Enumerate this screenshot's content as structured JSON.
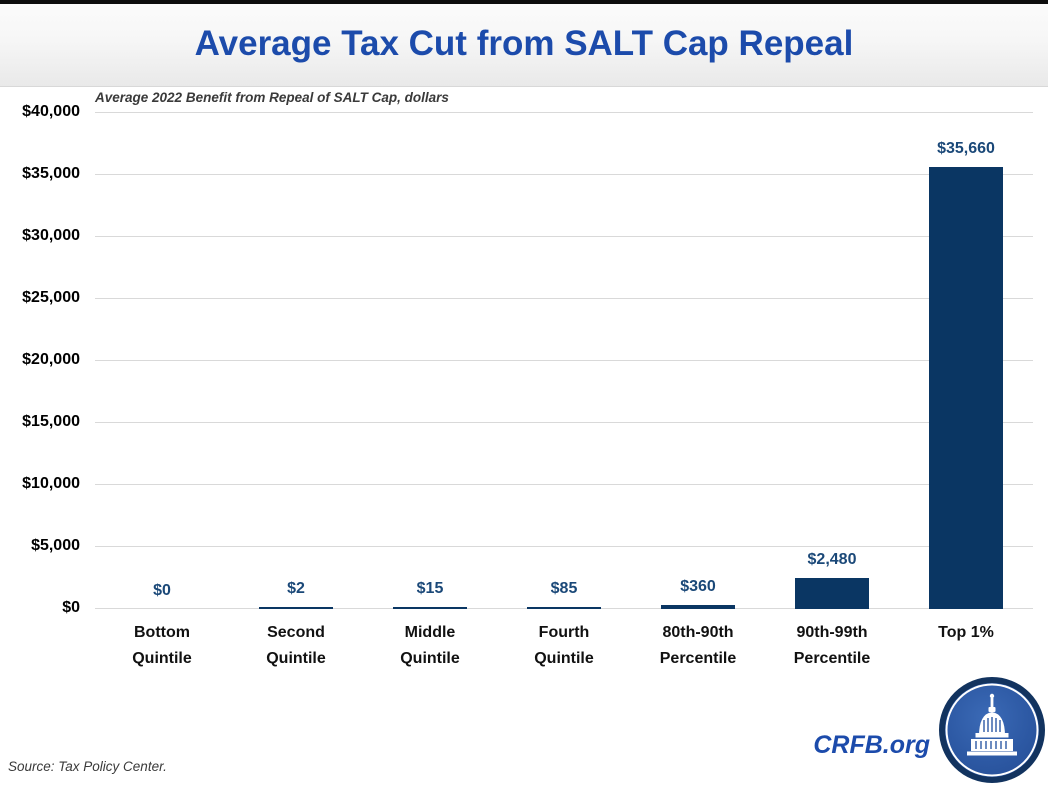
{
  "page": {
    "title": "Average Tax Cut from SALT Cap Repeal",
    "subtitle": "Average 2022 Benefit from Repeal of SALT Cap, dollars",
    "source_note": "Source: Tax Policy Center.",
    "brand": "CRFB.org",
    "logo_icon": "capitol-icon"
  },
  "chart_data": {
    "type": "bar",
    "title": "Average Tax Cut from SALT Cap Repeal",
    "subtitle": "Average 2022 Benefit from Repeal of SALT Cap, dollars",
    "categories": [
      [
        "Bottom",
        "Quintile"
      ],
      [
        "Second",
        "Quintile"
      ],
      [
        "Middle",
        "Quintile"
      ],
      [
        "Fourth",
        "Quintile"
      ],
      [
        "80th-90th",
        "Percentile"
      ],
      [
        "90th-99th",
        "Percentile"
      ],
      [
        "Top 1%"
      ]
    ],
    "values": [
      0,
      2,
      15,
      85,
      360,
      2480,
      35660
    ],
    "value_labels": [
      "$0",
      "$2",
      "$15",
      "$85",
      "$360",
      "$2,480",
      "$35,660"
    ],
    "xlabel": "",
    "ylabel": "",
    "ylim": [
      0,
      40000
    ],
    "ytick_step": 5000,
    "yticks": [
      0,
      5000,
      10000,
      15000,
      20000,
      25000,
      30000,
      35000,
      40000
    ],
    "ytick_labels": [
      "$0",
      "$5,000",
      "$10,000",
      "$15,000",
      "$20,000",
      "$25,000",
      "$30,000",
      "$35,000",
      "$40,000"
    ],
    "grid": true,
    "legend": false,
    "colors": {
      "bar": "#0a3663",
      "value_label": "#1a4878",
      "title": "#1c4bab",
      "gridline": "#d9d9d9",
      "axis_text": "#000000",
      "subtitle_text": "#3a3a3a"
    }
  }
}
